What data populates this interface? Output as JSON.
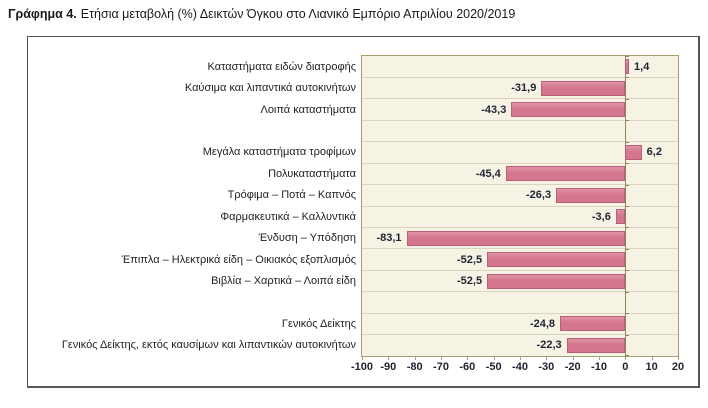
{
  "title": {
    "prefix": "Γράφημα 4.",
    "text": "Ετήσια μεταβολή (%) Δεικτών Όγκου στο Λιανικό Εμπόριο Απριλίου 2020/2019"
  },
  "chart_data": {
    "type": "bar",
    "orientation": "horizontal",
    "title": "Γράφημα 4. Ετήσια μεταβολή (%) Δεικτών Όγκου στο Λιανικό Εμπόριο Απριλίου 2020/2019",
    "categories": [
      "Καταστήματα ειδών διατροφής",
      "Καύσιμα και λιπαντικά αυτοκινήτων",
      "Λοιπά καταστήματα",
      "Μεγάλα καταστήματα τροφίμων",
      "Πολυκαταστήματα",
      "Τρόφιμα – Ποτά – Καπνός",
      "Φαρμακευτικά – Καλλυντικά",
      "Ένδυση – Υπόδηση",
      "Έπιπλα – Ηλεκτρικά είδη – Οικιακός εξοπλισμός",
      "Βιβλία – Χαρτικά – Λοιπά είδη",
      "Γενικός Δείκτης",
      "Γενικός Δείκτης, εκτός καυσίμων και λιπαντικών αυτοκινήτων"
    ],
    "values": [
      1.4,
      -31.9,
      -43.3,
      6.2,
      -45.4,
      -26.3,
      -3.6,
      -83.1,
      -52.5,
      -52.5,
      -24.8,
      -22.3
    ],
    "value_labels": [
      "1,4",
      "-31,9",
      "-43,3",
      "6,2",
      "-45,4",
      "-26,3",
      "-3,6",
      "-83,1",
      "-52,5",
      "-52,5",
      "-24,8",
      "-22,3"
    ],
    "group_gaps_after_index": [
      2,
      9
    ],
    "xlim": [
      -100,
      20
    ],
    "x_ticks": [
      -100,
      -90,
      -80,
      -70,
      -60,
      -50,
      -40,
      -30,
      -20,
      -10,
      0,
      10,
      20
    ],
    "x_tick_labels": [
      "-100",
      "-90",
      "-80",
      "-70",
      "-60",
      "-50",
      "-40",
      "-30",
      "-20",
      "-10",
      "0",
      "10",
      "20"
    ],
    "grid": "horizontal",
    "legend": "none",
    "colors": {
      "bar_fill": "#d4768e",
      "bar_fill_light": "#df94a7",
      "bar_border": "#b85f7a",
      "plot_bg": "#f7f3e4",
      "gridline": "#dad4be",
      "axis": "#a89e72",
      "zero_axis": "#8f865e",
      "frame_border": "#565656",
      "text": "#1f1f1f",
      "value_text": "#1f2433"
    }
  }
}
